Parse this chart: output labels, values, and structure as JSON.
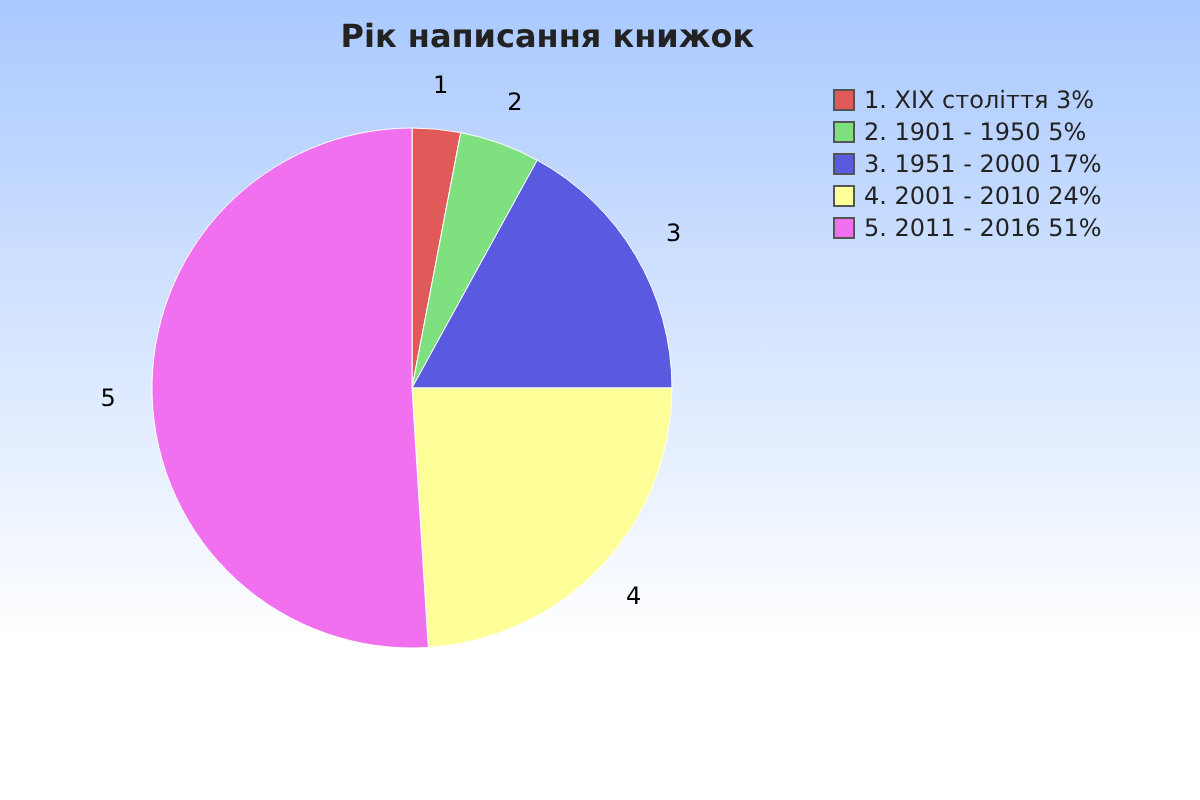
{
  "chart_data": {
    "type": "pie",
    "title": "Рік написання книжок",
    "categories": [
      "1. XIX століття 3%",
      "2. 1901 - 1950 5%",
      "3. 1951 - 2000 17%",
      "4. 2001 - 2010 24%",
      "5. 2011 - 2016 51%"
    ],
    "values": [
      3,
      5,
      17,
      24,
      51
    ],
    "colors": [
      "#e05a5a",
      "#7fe07f",
      "#5a5ae0",
      "#ffff99",
      "#f070f0"
    ],
    "annotations": [
      "1",
      "2",
      "3",
      "4",
      "5"
    ],
    "legend": "right"
  }
}
